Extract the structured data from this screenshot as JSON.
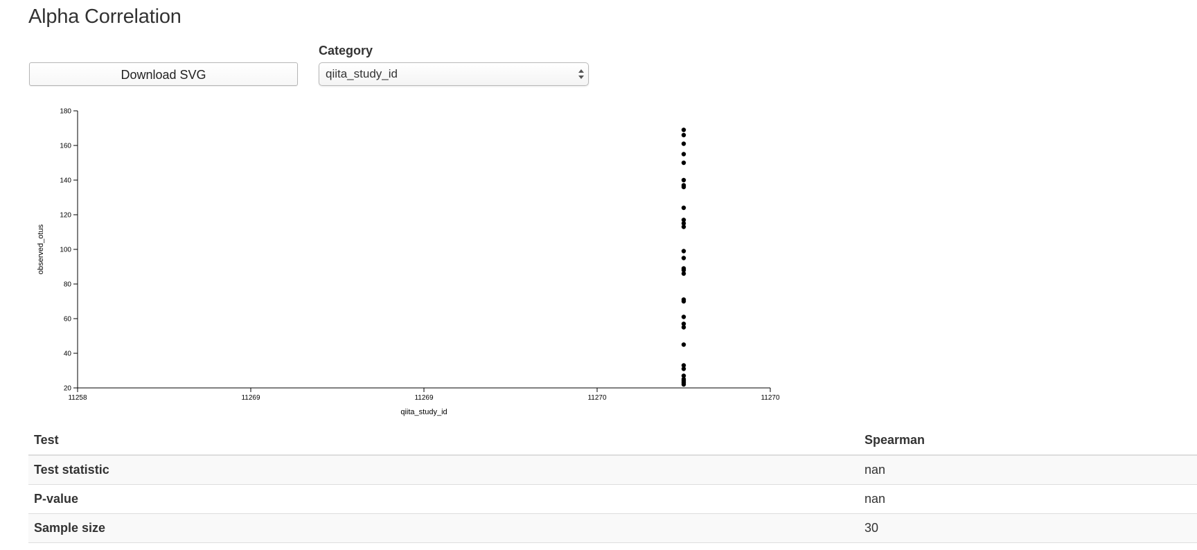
{
  "page": {
    "title": "Alpha Correlation"
  },
  "controls": {
    "download_label": "Download SVG",
    "category_label": "Category",
    "category_selected": "qiita_study_id"
  },
  "chart_data": {
    "type": "scatter",
    "xlabel": "qiita_study_id",
    "ylabel": "observed_otus",
    "xlim": [
      11258.5,
      11270.5
    ],
    "ylim": [
      20,
      180
    ],
    "x_tick_labels": [
      "11258",
      "11269",
      "11269",
      "11270",
      "11270"
    ],
    "y_ticks": [
      20,
      40,
      60,
      80,
      100,
      120,
      140,
      160,
      180
    ],
    "points": [
      {
        "x": 11269,
        "y": 169
      },
      {
        "x": 11269,
        "y": 166
      },
      {
        "x": 11269,
        "y": 161
      },
      {
        "x": 11269,
        "y": 155
      },
      {
        "x": 11269,
        "y": 150
      },
      {
        "x": 11269,
        "y": 140
      },
      {
        "x": 11269,
        "y": 137
      },
      {
        "x": 11269,
        "y": 136
      },
      {
        "x": 11269,
        "y": 124
      },
      {
        "x": 11269,
        "y": 117
      },
      {
        "x": 11269,
        "y": 115
      },
      {
        "x": 11269,
        "y": 113
      },
      {
        "x": 11269,
        "y": 99
      },
      {
        "x": 11269,
        "y": 95
      },
      {
        "x": 11269,
        "y": 89
      },
      {
        "x": 11269,
        "y": 88
      },
      {
        "x": 11269,
        "y": 86
      },
      {
        "x": 11269,
        "y": 71
      },
      {
        "x": 11269,
        "y": 70
      },
      {
        "x": 11269,
        "y": 61
      },
      {
        "x": 11269,
        "y": 57
      },
      {
        "x": 11269,
        "y": 55
      },
      {
        "x": 11269,
        "y": 45
      },
      {
        "x": 11269,
        "y": 33
      },
      {
        "x": 11269,
        "y": 31
      },
      {
        "x": 11269,
        "y": 27
      },
      {
        "x": 11269,
        "y": 25
      },
      {
        "x": 11269,
        "y": 24
      },
      {
        "x": 11269,
        "y": 23
      },
      {
        "x": 11269,
        "y": 22
      }
    ],
    "grid": false,
    "point_color": "#000000"
  },
  "table": {
    "headers": [
      "Test",
      "Spearman"
    ],
    "rows": [
      {
        "label": "Test statistic",
        "value": "nan"
      },
      {
        "label": "P-value",
        "value": "nan"
      },
      {
        "label": "Sample size",
        "value": "30"
      }
    ]
  }
}
